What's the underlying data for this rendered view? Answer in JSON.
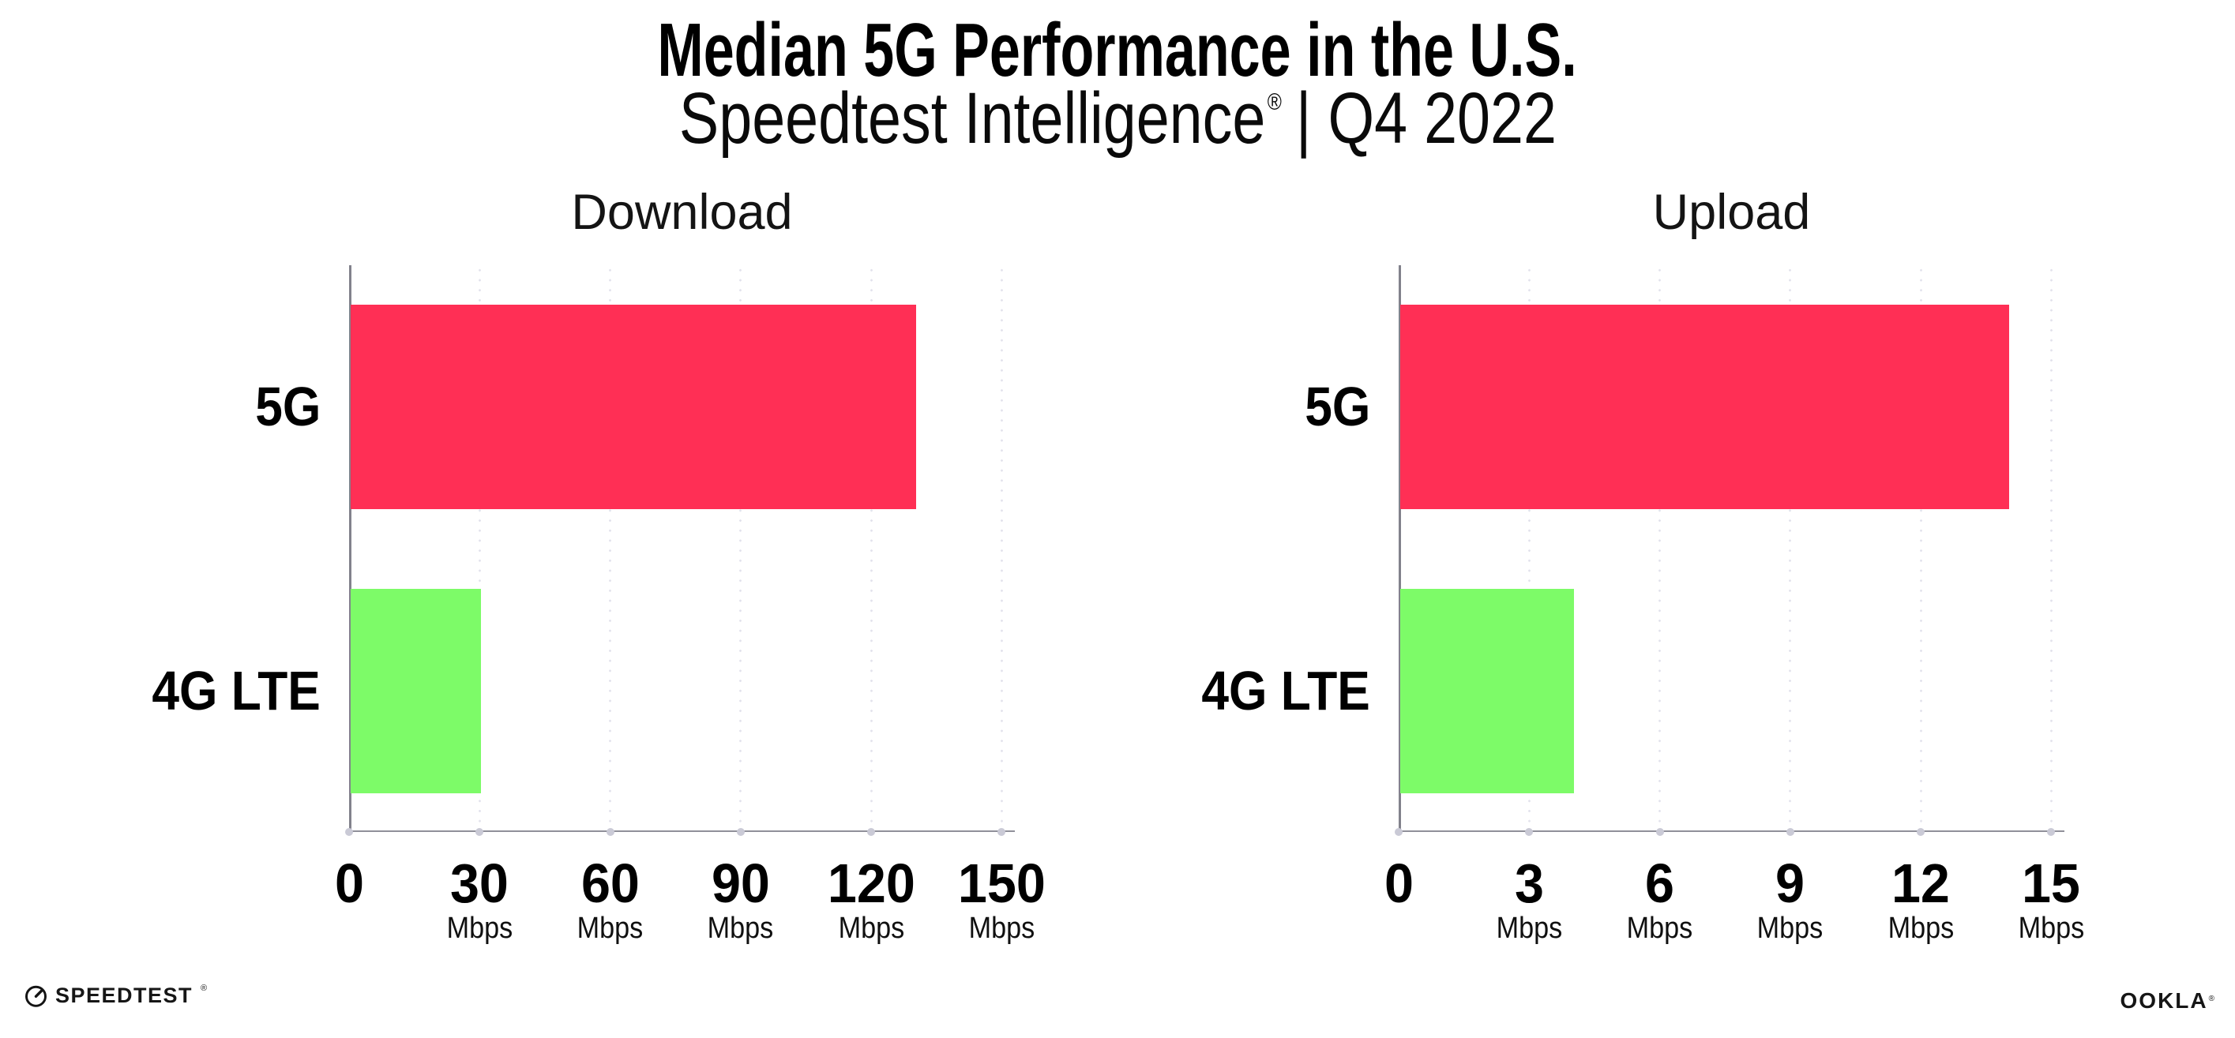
{
  "header": {
    "title": "Median 5G Performance in the U.S.",
    "subtitle_brand": "Speedtest Intelligence",
    "subtitle_reg": "®",
    "subtitle_rest": "| Q4 2022"
  },
  "chart_data": [
    {
      "type": "bar",
      "orientation": "horizontal",
      "title": "Download",
      "categories": [
        "5G",
        "4G LTE"
      ],
      "values": [
        130,
        30
      ],
      "unit": "Mbps",
      "xlabel": "",
      "ylabel": "",
      "xlim": [
        0,
        150
      ],
      "xticks": [
        0,
        30,
        60,
        90,
        120,
        150
      ],
      "grid": "vertical-dotted",
      "legend": "none",
      "bar_colors": [
        "#FF2F55",
        "#7DFB68"
      ]
    },
    {
      "type": "bar",
      "orientation": "horizontal",
      "title": "Upload",
      "categories": [
        "5G",
        "4G LTE"
      ],
      "values": [
        14,
        4
      ],
      "unit": "Mbps",
      "xlabel": "",
      "ylabel": "",
      "xlim": [
        0,
        15
      ],
      "xticks": [
        0,
        3,
        6,
        9,
        12,
        15
      ],
      "grid": "vertical-dotted",
      "legend": "none",
      "bar_colors": [
        "#FF2F55",
        "#7DFB68"
      ]
    }
  ],
  "footer": {
    "speedtest_label": "SPEEDTEST",
    "speedtest_mark": "®",
    "ookla_label": "OOKLA",
    "ookla_mark": "®"
  },
  "colors": {
    "bar_5g": "#FF2F55",
    "bar_4g_lte": "#7DFB68",
    "gridline": "#E2E2EC",
    "x_axis": "#90909A",
    "y_axis": "#82828C",
    "tick_dot": "#CACAD6",
    "text": "#000000",
    "background": "#FFFFFF"
  }
}
